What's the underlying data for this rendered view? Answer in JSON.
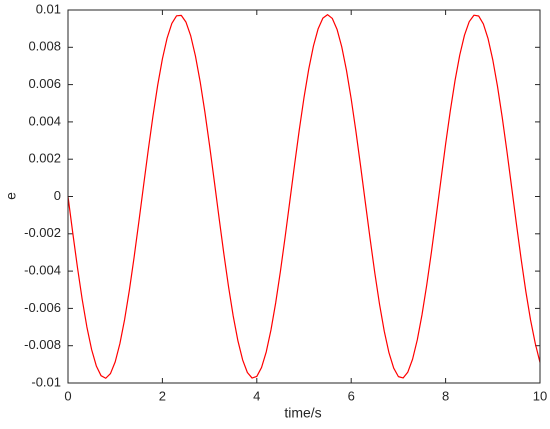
{
  "chart_data": {
    "type": "line",
    "xlabel": "time/s",
    "ylabel": "e",
    "color": "#ff0000",
    "x": [
      0,
      0.1,
      0.2,
      0.3,
      0.4,
      0.5,
      0.6,
      0.7,
      0.8,
      0.9,
      1,
      1.1,
      1.2,
      1.3,
      1.4,
      1.5,
      1.6,
      1.7,
      1.8,
      1.9,
      2,
      2.1,
      2.2,
      2.3,
      2.4,
      2.5,
      2.6,
      2.7,
      2.8,
      2.9,
      3,
      3.1,
      3.2,
      3.3,
      3.4,
      3.5,
      3.6,
      3.7,
      3.8,
      3.9,
      4,
      4.1,
      4.2,
      4.3,
      4.4,
      4.5,
      4.6,
      4.7,
      4.8,
      4.9,
      5,
      5.1,
      5.2,
      5.3,
      5.4,
      5.5,
      5.6,
      5.7,
      5.8,
      5.9,
      6,
      6.1,
      6.2,
      6.3,
      6.4,
      6.5,
      6.6,
      6.7,
      6.8,
      6.9,
      7,
      7.1,
      7.2,
      7.3,
      7.4,
      7.5,
      7.6,
      7.7,
      7.8,
      7.9,
      8,
      8.1,
      8.2,
      8.3,
      8.4,
      8.5,
      8.6,
      8.7,
      8.8,
      8.9,
      9,
      9.1,
      9.2,
      9.3,
      9.4,
      9.5,
      9.6,
      9.7,
      9.8,
      9.9,
      10
    ],
    "values": [
      0,
      -0.001937,
      -0.003797,
      -0.005505,
      -0.006995,
      -0.008205,
      -0.009087,
      -0.009608,
      -0.009746,
      -0.009495,
      -0.008866,
      -0.007883,
      -0.006586,
      -0.005026,
      -0.003266,
      -0.001376,
      0.000569,
      0.002491,
      0.004314,
      0.005966,
      0.007379,
      0.008498,
      0.009278,
      0.009689,
      0.009713,
      0.009349,
      0.008614,
      0.007535,
      0.006155,
      0.00453,
      0.002724,
      0.00081,
      -0.001136,
      -0.003037,
      -0.004817,
      -0.006406,
      -0.007739,
      -0.008762,
      -0.009437,
      -0.009735,
      -0.009647,
      -0.009172,
      -0.008332,
      -0.00716,
      -0.005703,
      -0.004018,
      -0.002173,
      -0.000242,
      0.001699,
      0.003573,
      0.005304,
      0.006824,
      0.008071,
      0.008996,
      0.009564,
      0.00975,
      0.009547,
      0.008963,
      0.008022,
      0.006762,
      0.005232,
      0.003492,
      0.001615,
      -0.000328,
      -0.002257,
      -0.004097,
      -0.005773,
      -0.007219,
      -0.008377,
      -0.009201,
      -0.009658,
      -0.00973,
      -0.009414,
      -0.008726,
      -0.007687,
      -0.00634,
      -0.00475,
      -0.002972,
      -0.001073,
      0.000861,
      0.002807,
      0.0046,
      0.006219,
      0.007586,
      0.008649,
      0.009374,
      0.00972,
      0.009679,
      0.009251,
      0.008459,
      0.007322,
      0.005898,
      0.004237,
      0.002408,
      0.000483,
      -0.001462,
      -0.003347,
      -0.005095,
      -0.006623,
      -0.007883,
      -0.008901
    ],
    "xlim": [
      0,
      10
    ],
    "xticks": [
      0,
      2,
      4,
      6,
      8,
      10
    ],
    "ylim": [
      -0.01,
      0.01
    ],
    "yticks": [
      -0.01,
      -0.008,
      -0.006,
      -0.004,
      -0.002,
      0,
      0.002,
      0.004,
      0.006,
      0.008,
      0.01
    ]
  }
}
